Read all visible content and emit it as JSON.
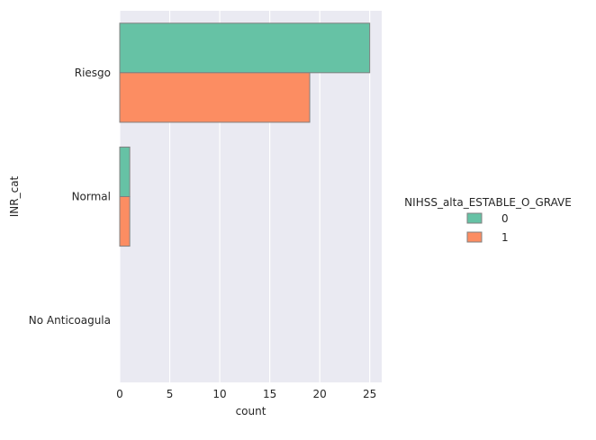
{
  "chart_data": {
    "type": "bar",
    "orientation": "horizontal",
    "categories": [
      "Riesgo",
      "Normal",
      "No Anticoagula"
    ],
    "series": [
      {
        "name": "0",
        "values": [
          25,
          1,
          0
        ],
        "color": "#66c2a5"
      },
      {
        "name": "1",
        "values": [
          19,
          1,
          0
        ],
        "color": "#fc8d62"
      }
    ],
    "xlabel": "count",
    "ylabel": "INR_cat",
    "xlim": [
      0,
      26.2
    ],
    "xticks": [
      0,
      5,
      10,
      15,
      20,
      25
    ],
    "grid": true,
    "legend": {
      "title": "NIHSS_alta_ESTABLE_O_GRAVE",
      "placement": "right"
    },
    "background": "#eaeaf2",
    "bar_edge_color": "#808080"
  }
}
